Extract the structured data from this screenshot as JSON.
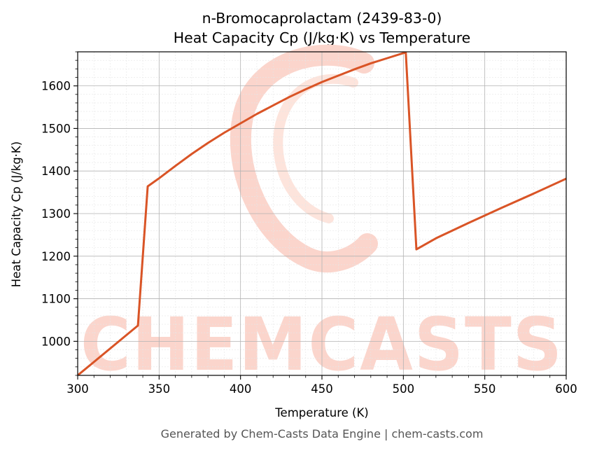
{
  "chart_data": {
    "type": "line",
    "title": "n-Bromocaprolactam (2439-83-0)",
    "subtitle": "Heat Capacity Cp (J/kg·K) vs Temperature",
    "xlabel": "Temperature (K)",
    "ylabel": "Heat Capacity Cp (J/kg·K)",
    "xlim": [
      300,
      600
    ],
    "ylim": [
      920,
      1680
    ],
    "xticks": [
      300,
      350,
      400,
      450,
      500,
      550,
      600
    ],
    "yticks": [
      1000,
      1100,
      1200,
      1300,
      1400,
      1500,
      1600
    ],
    "grid": true,
    "legend": "none",
    "series": [
      {
        "color": "#d95426",
        "x": [
          300,
          337,
          343,
          350,
          360,
          370,
          380,
          390,
          400,
          410,
          420,
          430,
          440,
          450,
          460,
          470,
          480,
          490,
          500,
          501.5,
          508,
          520,
          540,
          560,
          580,
          600
        ],
        "y": [
          920,
          1037,
          1364,
          1383,
          1412,
          1440,
          1466,
          1490,
          1512,
          1534,
          1554,
          1574,
          1592,
          1609,
          1624,
          1639,
          1653,
          1665,
          1677,
          1678,
          1216,
          1242,
          1278,
          1313,
          1347,
          1382
        ]
      }
    ]
  },
  "watermark": {
    "text": "CHEMCASTS",
    "color": "#fbd5cc"
  },
  "footer": "Generated by Chem-Casts Data Engine | chem-casts.com"
}
